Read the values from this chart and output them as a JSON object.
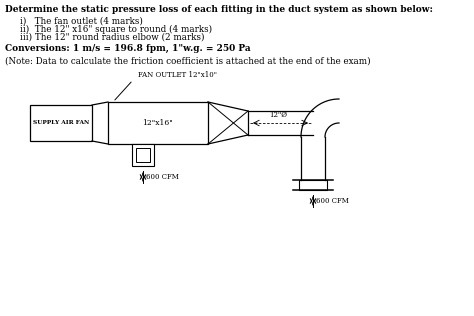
{
  "title_text": "Determine the static pressure loss of each fitting in the duct system as shown below:",
  "items": [
    "i)   The fan outlet (4 marks)",
    "ii)  The 12\" x16\" square to round (4 marks)",
    "iii) The 12\" round radius elbow (2 marks)"
  ],
  "conversions": "Conversions: 1 m/s = 196.8 fpm, 1\"w.g. = 250 Pa",
  "note": "(Note: Data to calculate the friction coefficient is attached at the end of the exam)",
  "diagram_labels": {
    "fan_outlet": "FAN OUTLET 12\"x10\"",
    "supply_air": "SUPPLY AIR FAN",
    "duct_size": "12\"x16\"",
    "round_duct": "12\"Ø",
    "cfm_left": "600 CFM",
    "cfm_right": "600 CFM"
  },
  "bg_color": "#ffffff",
  "line_color": "#000000",
  "font_color": "#000000"
}
